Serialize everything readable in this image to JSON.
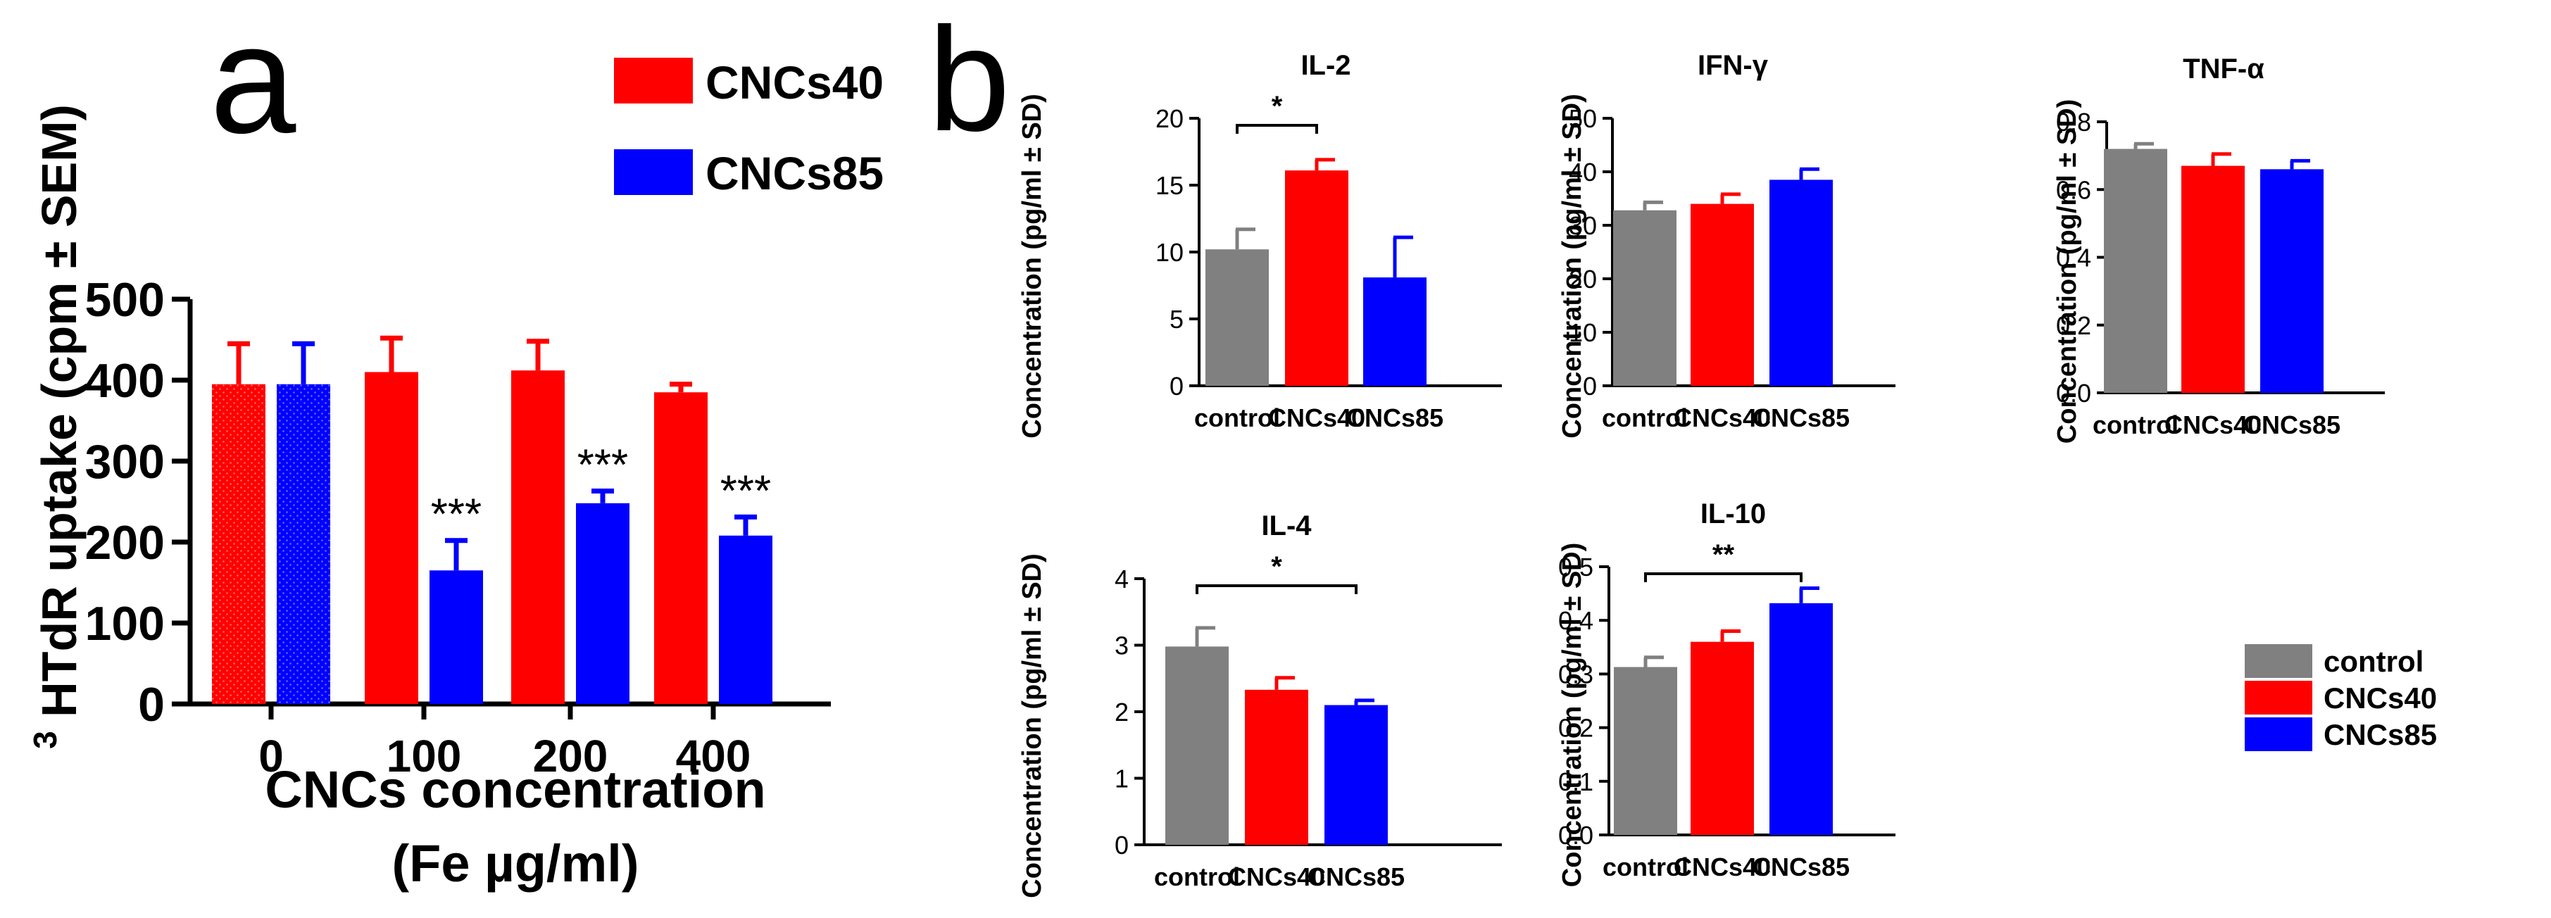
{
  "panel_a": {
    "label": "a",
    "ylabel_sup": "3",
    "ylabel_rest": "HTdR uptake (cpm ± SEM)",
    "xlabel_line1": "CNCs concentration",
    "xlabel_line2": "(Fe µg/ml)",
    "legend": [
      "CNCs40",
      "CNCs85"
    ]
  },
  "panel_b": {
    "label": "b",
    "ylabel": "Concentration (pg/ml ± SD)",
    "legend": [
      "control",
      "CNCs40",
      "CNCs85"
    ]
  },
  "colors": {
    "control": "#808080",
    "CNCs40": "#ff0000",
    "CNCs85": "#0000ff",
    "axis": "#000000"
  },
  "chart_data": [
    {
      "id": "a",
      "type": "bar",
      "title": "",
      "xlabel": "CNCs concentration (Fe µg/ml)",
      "ylabel": "3HTdR uptake (cpm ± SEM)",
      "categories": [
        "0",
        "100",
        "200",
        "400"
      ],
      "ylim": [
        0,
        500
      ],
      "yticks": [
        "0",
        "100",
        "200",
        "300",
        "400",
        "500"
      ],
      "series": [
        {
          "name": "CNCs40",
          "values": [
            395,
            410,
            412,
            385
          ],
          "errors": [
            50,
            42,
            36,
            10
          ]
        },
        {
          "name": "CNCs85",
          "values": [
            395,
            165,
            248,
            208
          ],
          "errors": [
            50,
            37,
            15,
            23
          ]
        }
      ],
      "annotations": [
        {
          "series": "CNCs85",
          "category": "100",
          "text": "***"
        },
        {
          "series": "CNCs85",
          "category": "200",
          "text": "***"
        },
        {
          "series": "CNCs85",
          "category": "400",
          "text": "***"
        }
      ],
      "grid": false,
      "legend": "top-right"
    },
    {
      "id": "IL-2",
      "type": "bar",
      "title": "IL-2",
      "categories": [
        "control",
        "CNCs40",
        "CNCs85"
      ],
      "values": [
        10.2,
        16.1,
        8.1
      ],
      "errors": [
        1.5,
        0.8,
        3.0
      ],
      "ylim": [
        0,
        20
      ],
      "yticks": [
        "0",
        "5",
        "10",
        "15",
        "20"
      ],
      "ylabel": "Concentration (pg/ml ± SD)",
      "significance": [
        {
          "from": "control",
          "to": "CNCs40",
          "text": "*"
        }
      ],
      "grid": false
    },
    {
      "id": "IFN-γ",
      "type": "bar",
      "title": "IFN-γ",
      "categories": [
        "control",
        "CNCs40",
        "CNCs85"
      ],
      "values": [
        32.8,
        34.0,
        38.5
      ],
      "errors": [
        1.5,
        1.8,
        2.0
      ],
      "ylim": [
        0,
        50
      ],
      "yticks": [
        "0",
        "10",
        "20",
        "30",
        "40",
        "50"
      ],
      "ylabel": "Concentration (pg/ml ± SD)",
      "significance": [],
      "grid": false
    },
    {
      "id": "TNF-α",
      "type": "bar",
      "title": "TNF-α",
      "categories": [
        "control",
        "CNCs40",
        "CNCs85"
      ],
      "values": [
        0.72,
        0.67,
        0.66
      ],
      "errors": [
        0.015,
        0.035,
        0.025
      ],
      "ylim": [
        0,
        0.8
      ],
      "yticks": [
        "0.0",
        "0.2",
        "0.4",
        "0.6",
        "0.8"
      ],
      "ylabel": "Concentration (pg/ml ± SD)",
      "significance": [],
      "grid": false
    },
    {
      "id": "IL-4",
      "type": "bar",
      "title": "IL-4",
      "categories": [
        "control",
        "CNCs40",
        "CNCs85"
      ],
      "values": [
        2.98,
        2.33,
        2.1
      ],
      "errors": [
        0.28,
        0.18,
        0.07
      ],
      "ylim": [
        0,
        4
      ],
      "yticks": [
        "0",
        "1",
        "2",
        "3",
        "4"
      ],
      "ylabel": "Concentration (pg/ml ± SD)",
      "significance": [
        {
          "from": "control",
          "to": "CNCs85",
          "text": "*"
        }
      ],
      "grid": false
    },
    {
      "id": "IL-10",
      "type": "bar",
      "title": "IL-10",
      "categories": [
        "control",
        "CNCs40",
        "CNCs85"
      ],
      "values": [
        0.313,
        0.36,
        0.432
      ],
      "errors": [
        0.018,
        0.02,
        0.028
      ],
      "ylim": [
        0,
        0.5
      ],
      "yticks": [
        "0.0",
        "0.1",
        "0.2",
        "0.3",
        "0.4",
        "0.5"
      ],
      "ylabel": "Concentration (pg/ml ± SD)",
      "significance": [
        {
          "from": "control",
          "to": "CNCs85",
          "text": "**"
        }
      ],
      "grid": false
    }
  ]
}
